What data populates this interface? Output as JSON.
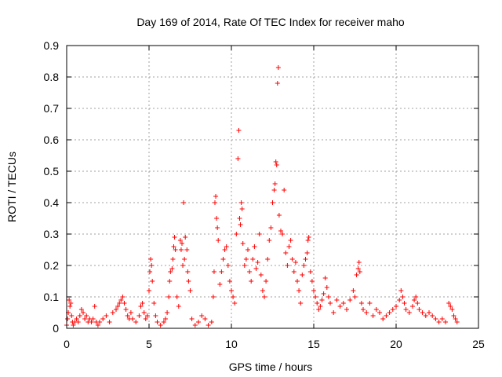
{
  "chart_data": {
    "type": "scatter",
    "title": "Day 169 of 2014, Rate Of TEC Index for receiver maho",
    "xlabel": "GPS time / hours",
    "ylabel": "ROTI / TECUs",
    "xlim": [
      0,
      25
    ],
    "ylim": [
      0,
      0.9
    ],
    "x_ticks": [
      "0",
      "5",
      "10",
      "15",
      "20",
      "25"
    ],
    "y_ticks": [
      "0",
      "0.1",
      "0.2",
      "0.3",
      "0.4",
      "0.5",
      "0.6",
      "0.7",
      "0.8",
      "0.9"
    ],
    "grid": true,
    "marker": "+",
    "color": "#ff0000",
    "series": [
      {
        "points": [
          [
            0.0,
            0.01
          ],
          [
            0.05,
            0.03
          ],
          [
            0.1,
            0.05
          ],
          [
            0.15,
            0.09
          ],
          [
            0.2,
            0.07
          ],
          [
            0.25,
            0.08
          ],
          [
            0.3,
            0.04
          ],
          [
            0.35,
            0.02
          ],
          [
            0.4,
            0.01
          ],
          [
            0.5,
            0.02
          ],
          [
            0.6,
            0.03
          ],
          [
            0.7,
            0.02
          ],
          [
            0.8,
            0.04
          ],
          [
            0.9,
            0.06
          ],
          [
            1.0,
            0.05
          ],
          [
            1.1,
            0.03
          ],
          [
            1.2,
            0.04
          ],
          [
            1.3,
            0.02
          ],
          [
            1.4,
            0.03
          ],
          [
            1.5,
            0.02
          ],
          [
            1.6,
            0.03
          ],
          [
            1.7,
            0.07
          ],
          [
            1.8,
            0.02
          ],
          [
            1.9,
            0.01
          ],
          [
            2.0,
            0.02
          ],
          [
            2.2,
            0.03
          ],
          [
            2.4,
            0.04
          ],
          [
            2.6,
            0.02
          ],
          [
            2.8,
            0.05
          ],
          [
            3.0,
            0.06
          ],
          [
            3.1,
            0.07
          ],
          [
            3.2,
            0.08
          ],
          [
            3.3,
            0.09
          ],
          [
            3.4,
            0.1
          ],
          [
            3.5,
            0.08
          ],
          [
            3.6,
            0.06
          ],
          [
            3.7,
            0.04
          ],
          [
            3.8,
            0.03
          ],
          [
            3.9,
            0.05
          ],
          [
            4.0,
            0.03
          ],
          [
            4.2,
            0.02
          ],
          [
            4.4,
            0.04
          ],
          [
            4.5,
            0.07
          ],
          [
            4.6,
            0.08
          ],
          [
            4.7,
            0.05
          ],
          [
            4.8,
            0.03
          ],
          [
            4.9,
            0.04
          ],
          [
            5.0,
            0.12
          ],
          [
            5.05,
            0.18
          ],
          [
            5.1,
            0.22
          ],
          [
            5.15,
            0.2
          ],
          [
            5.2,
            0.15
          ],
          [
            5.3,
            0.08
          ],
          [
            5.4,
            0.04
          ],
          [
            5.5,
            0.02
          ],
          [
            5.7,
            0.01
          ],
          [
            5.9,
            0.02
          ],
          [
            6.0,
            0.03
          ],
          [
            6.1,
            0.05
          ],
          [
            6.2,
            0.1
          ],
          [
            6.25,
            0.15
          ],
          [
            6.3,
            0.18
          ],
          [
            6.4,
            0.19
          ],
          [
            6.45,
            0.22
          ],
          [
            6.5,
            0.26
          ],
          [
            6.55,
            0.29
          ],
          [
            6.6,
            0.25
          ],
          [
            6.7,
            0.1
          ],
          [
            6.8,
            0.07
          ],
          [
            6.9,
            0.28
          ],
          [
            6.95,
            0.25
          ],
          [
            7.0,
            0.27
          ],
          [
            7.05,
            0.2
          ],
          [
            7.1,
            0.4
          ],
          [
            7.15,
            0.22
          ],
          [
            7.2,
            0.29
          ],
          [
            7.3,
            0.25
          ],
          [
            7.35,
            0.18
          ],
          [
            7.4,
            0.15
          ],
          [
            7.5,
            0.12
          ],
          [
            7.6,
            0.03
          ],
          [
            7.8,
            0.01
          ],
          [
            8.0,
            0.02
          ],
          [
            8.2,
            0.04
          ],
          [
            8.4,
            0.03
          ],
          [
            8.6,
            0.01
          ],
          [
            8.8,
            0.02
          ],
          [
            8.9,
            0.1
          ],
          [
            8.95,
            0.18
          ],
          [
            9.0,
            0.4
          ],
          [
            9.05,
            0.42
          ],
          [
            9.1,
            0.35
          ],
          [
            9.15,
            0.32
          ],
          [
            9.2,
            0.28
          ],
          [
            9.3,
            0.14
          ],
          [
            9.4,
            0.18
          ],
          [
            9.5,
            0.22
          ],
          [
            9.6,
            0.25
          ],
          [
            9.7,
            0.26
          ],
          [
            9.8,
            0.2
          ],
          [
            9.9,
            0.15
          ],
          [
            10.0,
            0.12
          ],
          [
            10.1,
            0.1
          ],
          [
            10.2,
            0.08
          ],
          [
            10.3,
            0.3
          ],
          [
            10.4,
            0.54
          ],
          [
            10.45,
            0.63
          ],
          [
            10.5,
            0.35
          ],
          [
            10.55,
            0.33
          ],
          [
            10.6,
            0.4
          ],
          [
            10.65,
            0.38
          ],
          [
            10.7,
            0.27
          ],
          [
            10.8,
            0.2
          ],
          [
            10.9,
            0.22
          ],
          [
            11.0,
            0.25
          ],
          [
            11.1,
            0.18
          ],
          [
            11.2,
            0.15
          ],
          [
            11.3,
            0.22
          ],
          [
            11.4,
            0.26
          ],
          [
            11.5,
            0.19
          ],
          [
            11.6,
            0.21
          ],
          [
            11.7,
            0.3
          ],
          [
            11.8,
            0.17
          ],
          [
            11.9,
            0.12
          ],
          [
            12.0,
            0.1
          ],
          [
            12.1,
            0.15
          ],
          [
            12.2,
            0.22
          ],
          [
            12.3,
            0.28
          ],
          [
            12.4,
            0.32
          ],
          [
            12.5,
            0.4
          ],
          [
            12.6,
            0.44
          ],
          [
            12.65,
            0.46
          ],
          [
            12.7,
            0.53
          ],
          [
            12.75,
            0.52
          ],
          [
            12.8,
            0.78
          ],
          [
            12.85,
            0.83
          ],
          [
            12.9,
            0.36
          ],
          [
            13.0,
            0.31
          ],
          [
            13.1,
            0.3
          ],
          [
            13.2,
            0.44
          ],
          [
            13.3,
            0.24
          ],
          [
            13.4,
            0.2
          ],
          [
            13.5,
            0.26
          ],
          [
            13.6,
            0.28
          ],
          [
            13.7,
            0.22
          ],
          [
            13.8,
            0.18
          ],
          [
            13.9,
            0.21
          ],
          [
            14.0,
            0.15
          ],
          [
            14.1,
            0.12
          ],
          [
            14.2,
            0.08
          ],
          [
            14.3,
            0.17
          ],
          [
            14.4,
            0.2
          ],
          [
            14.5,
            0.22
          ],
          [
            14.6,
            0.24
          ],
          [
            14.65,
            0.28
          ],
          [
            14.7,
            0.29
          ],
          [
            14.8,
            0.18
          ],
          [
            14.9,
            0.15
          ],
          [
            15.0,
            0.12
          ],
          [
            15.1,
            0.1
          ],
          [
            15.2,
            0.08
          ],
          [
            15.3,
            0.06
          ],
          [
            15.4,
            0.07
          ],
          [
            15.5,
            0.09
          ],
          [
            15.6,
            0.11
          ],
          [
            15.7,
            0.16
          ],
          [
            15.8,
            0.13
          ],
          [
            15.9,
            0.1
          ],
          [
            16.0,
            0.08
          ],
          [
            16.2,
            0.05
          ],
          [
            16.4,
            0.09
          ],
          [
            16.6,
            0.07
          ],
          [
            16.8,
            0.08
          ],
          [
            17.0,
            0.06
          ],
          [
            17.2,
            0.09
          ],
          [
            17.4,
            0.12
          ],
          [
            17.5,
            0.1
          ],
          [
            17.6,
            0.17
          ],
          [
            17.7,
            0.19
          ],
          [
            17.75,
            0.21
          ],
          [
            17.8,
            0.18
          ],
          [
            17.9,
            0.08
          ],
          [
            18.0,
            0.06
          ],
          [
            18.2,
            0.05
          ],
          [
            18.4,
            0.08
          ],
          [
            18.6,
            0.04
          ],
          [
            18.8,
            0.06
          ],
          [
            19.0,
            0.05
          ],
          [
            19.2,
            0.03
          ],
          [
            19.4,
            0.04
          ],
          [
            19.6,
            0.05
          ],
          [
            19.8,
            0.06
          ],
          [
            20.0,
            0.07
          ],
          [
            20.2,
            0.09
          ],
          [
            20.3,
            0.12
          ],
          [
            20.4,
            0.1
          ],
          [
            20.5,
            0.08
          ],
          [
            20.6,
            0.06
          ],
          [
            20.8,
            0.05
          ],
          [
            21.0,
            0.07
          ],
          [
            21.1,
            0.09
          ],
          [
            21.2,
            0.1
          ],
          [
            21.3,
            0.08
          ],
          [
            21.4,
            0.06
          ],
          [
            21.6,
            0.05
          ],
          [
            21.8,
            0.04
          ],
          [
            22.0,
            0.05
          ],
          [
            22.2,
            0.04
          ],
          [
            22.4,
            0.03
          ],
          [
            22.6,
            0.02
          ],
          [
            22.8,
            0.03
          ],
          [
            23.0,
            0.02
          ],
          [
            23.2,
            0.08
          ],
          [
            23.3,
            0.07
          ],
          [
            23.4,
            0.06
          ],
          [
            23.5,
            0.04
          ],
          [
            23.6,
            0.03
          ],
          [
            23.7,
            0.02
          ]
        ]
      }
    ]
  }
}
